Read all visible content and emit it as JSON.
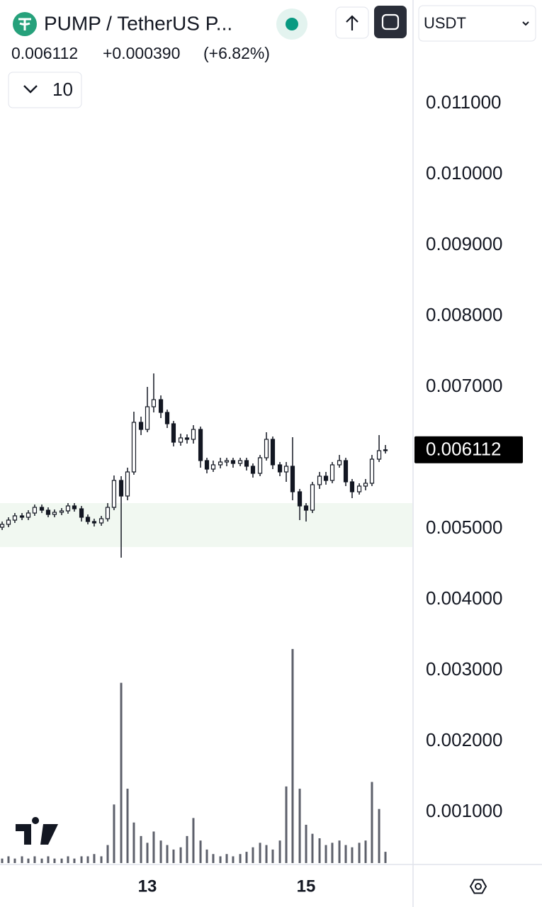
{
  "header": {
    "title": "PUMP / TetherUS P...",
    "price": "0.006112",
    "change": "+0.000390",
    "change_pct": "(+6.82%)",
    "interval": "10",
    "currency": "USDT"
  },
  "chart_data": {
    "type": "candlestick",
    "x": [
      11.17,
      11.25,
      11.33,
      11.42,
      11.5,
      11.58,
      11.67,
      11.75,
      11.83,
      11.92,
      12,
      12.08,
      12.17,
      12.25,
      12.33,
      12.42,
      12.5,
      12.58,
      12.67,
      12.75,
      12.83,
      12.92,
      13,
      13.08,
      13.17,
      13.25,
      13.33,
      13.42,
      13.5,
      13.58,
      13.67,
      13.75,
      13.83,
      13.92,
      14,
      14.08,
      14.17,
      14.25,
      14.33,
      14.42,
      14.5,
      14.58,
      14.67,
      14.75,
      14.83,
      14.92,
      15,
      15.08,
      15.17,
      15.25,
      15.33,
      15.42,
      15.5,
      15.58,
      15.67,
      15.75,
      15.83,
      15.92,
      16
    ],
    "open": [
      0.00502,
      0.00506,
      0.00512,
      0.00518,
      0.00516,
      0.00522,
      0.0053,
      0.00526,
      0.0052,
      0.00523,
      0.00525,
      0.00532,
      0.00528,
      0.00516,
      0.0051,
      0.00508,
      0.00514,
      0.0053,
      0.00568,
      0.00546,
      0.0058,
      0.0065,
      0.0064,
      0.00672,
      0.00682,
      0.00664,
      0.00648,
      0.00622,
      0.00628,
      0.00626,
      0.0064,
      0.00596,
      0.00584,
      0.0059,
      0.00594,
      0.00596,
      0.00592,
      0.00596,
      0.00588,
      0.00578,
      0.006,
      0.00626,
      0.0059,
      0.0058,
      0.00588,
      0.00552,
      0.00532,
      0.00526,
      0.00562,
      0.00574,
      0.00568,
      0.0059,
      0.00596,
      0.00566,
      0.00552,
      0.0056,
      0.00564,
      0.00598,
      0.0061
    ],
    "high": [
      0.0051,
      0.00516,
      0.00522,
      0.00522,
      0.00526,
      0.00534,
      0.00534,
      0.0053,
      0.00527,
      0.00529,
      0.00536,
      0.00536,
      0.00532,
      0.0052,
      0.00514,
      0.00518,
      0.00536,
      0.00575,
      0.00574,
      0.00586,
      0.00665,
      0.00658,
      0.007,
      0.00719,
      0.00688,
      0.00668,
      0.00652,
      0.00634,
      0.00633,
      0.00646,
      0.00644,
      0.006,
      0.00596,
      0.006,
      0.006,
      0.006,
      0.006,
      0.006,
      0.00592,
      0.00604,
      0.00636,
      0.0063,
      0.00594,
      0.00594,
      0.00629,
      0.00556,
      0.00536,
      0.00566,
      0.0058,
      0.0058,
      0.00594,
      0.00604,
      0.006,
      0.0057,
      0.00564,
      0.0057,
      0.00604,
      0.00632,
      0.00618
    ],
    "low": [
      0.00498,
      0.00502,
      0.00508,
      0.00512,
      0.00512,
      0.00518,
      0.00522,
      0.00516,
      0.00516,
      0.00519,
      0.00521,
      0.00524,
      0.0051,
      0.00506,
      0.00503,
      0.00504,
      0.0051,
      0.00526,
      0.00459,
      0.0054,
      0.00576,
      0.00632,
      0.00636,
      0.00664,
      0.00656,
      0.00642,
      0.00616,
      0.00617,
      0.0062,
      0.0062,
      0.00586,
      0.00578,
      0.0058,
      0.00585,
      0.00588,
      0.00586,
      0.00588,
      0.00582,
      0.00572,
      0.00574,
      0.00596,
      0.00584,
      0.00574,
      0.00566,
      0.0054,
      0.00512,
      0.0051,
      0.00522,
      0.00556,
      0.00562,
      0.00564,
      0.00586,
      0.0056,
      0.00543,
      0.00548,
      0.00554,
      0.0056,
      0.00594,
      0.00606
    ],
    "close": [
      0.00506,
      0.00512,
      0.00518,
      0.00516,
      0.00522,
      0.0053,
      0.00526,
      0.0052,
      0.00523,
      0.00525,
      0.00532,
      0.00528,
      0.00516,
      0.0051,
      0.00508,
      0.00514,
      0.0053,
      0.00568,
      0.00546,
      0.0058,
      0.0065,
      0.0064,
      0.00672,
      0.00682,
      0.00664,
      0.00648,
      0.00622,
      0.00628,
      0.00626,
      0.0064,
      0.00596,
      0.00584,
      0.0059,
      0.00594,
      0.00596,
      0.00592,
      0.00596,
      0.00588,
      0.00578,
      0.006,
      0.00626,
      0.0059,
      0.0058,
      0.00588,
      0.00552,
      0.00532,
      0.00526,
      0.00562,
      0.00574,
      0.00568,
      0.0059,
      0.00596,
      0.00566,
      0.00552,
      0.0056,
      0.00564,
      0.00598,
      0.0061,
      0.006112
    ],
    "volume": [
      2,
      3,
      2,
      3,
      2,
      3,
      2,
      3,
      2,
      2,
      3,
      2,
      3,
      3,
      4,
      3,
      8,
      26,
      80,
      33,
      18,
      12,
      9,
      14,
      10,
      8,
      6,
      7,
      12,
      20,
      10,
      6,
      4,
      3,
      4,
      3,
      4,
      5,
      7,
      9,
      8,
      6,
      10,
      34,
      95,
      33,
      17,
      13,
      11,
      8,
      9,
      10,
      8,
      7,
      9,
      10,
      36,
      24,
      5
    ],
    "candle_color": "#131722",
    "volume_color": "#5d606b",
    "highlight": {
      "range": [
        0.00474,
        0.00536
      ],
      "color": "#f1f8f1"
    },
    "xlim": [
      11.143,
      16.339
    ],
    "xticks": [
      13,
      15
    ],
    "ylim": [
      0.00026,
      0.01246
    ],
    "yticks": [
      {
        "value": 0.001,
        "label": "0.001000"
      },
      {
        "value": 0.002,
        "label": "0.002000"
      },
      {
        "value": 0.003,
        "label": "0.003000"
      },
      {
        "value": 0.004,
        "label": "0.004000"
      },
      {
        "value": 0.005,
        "label": "0.005000"
      },
      {
        "value": 0.007,
        "label": "0.007000"
      },
      {
        "value": 0.008,
        "label": "0.008000"
      },
      {
        "value": 0.009,
        "label": "0.009000"
      },
      {
        "value": 0.01,
        "label": "0.010000"
      },
      {
        "value": 0.011,
        "label": "0.011000"
      }
    ],
    "y2lim": [
      0,
      100
    ]
  }
}
